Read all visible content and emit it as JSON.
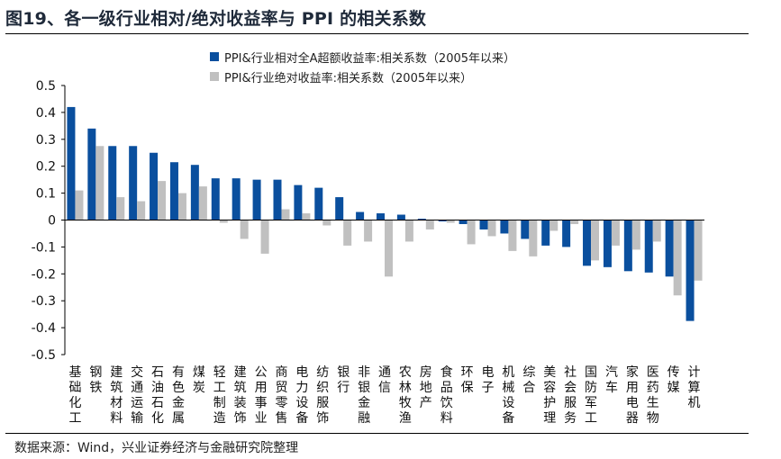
{
  "title": "图19、各一级行业相对/绝对收益率与 PPI 的相关系数",
  "source": "数据来源：Wind，兴业证券经济与金融研究院整理",
  "colors": {
    "series1": "#0a4f9e",
    "series2": "#c0c0c0"
  },
  "chart_data": {
    "type": "bar",
    "title": "各一级行业相对/绝对收益率与 PPI 的相关系数",
    "xlabel": "",
    "ylabel": "",
    "ylim": [
      -0.5,
      0.5
    ],
    "yticks": [
      "0.5",
      "0.4",
      "0.3",
      "0.2",
      "0.1",
      "0",
      "-0.1",
      "-0.2",
      "-0.3",
      "-0.4",
      "-0.5"
    ],
    "ytick_values": [
      0.5,
      0.4,
      0.3,
      0.2,
      0.1,
      0,
      -0.1,
      -0.2,
      -0.3,
      -0.4,
      -0.5
    ],
    "legend_position": "top",
    "grid": false,
    "categories": [
      "基础化工",
      "钢铁",
      "建筑材料",
      "交通运输",
      "石油石化",
      "有色金属",
      "煤炭",
      "轻工制造",
      "建筑装饰",
      "公用事业",
      "商贸零售",
      "电力设备",
      "纺织服饰",
      "银行",
      "非银金融",
      "通信",
      "农林牧渔",
      "房地产",
      "食品饮料",
      "环保",
      "电子",
      "机械设备",
      "综合",
      "美容护理",
      "社会服务",
      "国防军工",
      "汽车",
      "家用电器",
      "医药生物",
      "传媒",
      "计算机"
    ],
    "series": [
      {
        "name": "PPI&行业相对全A超额收益率:相关系数（2005年以来）",
        "values": [
          0.42,
          0.34,
          0.275,
          0.275,
          0.25,
          0.215,
          0.205,
          0.155,
          0.155,
          0.15,
          0.15,
          0.13,
          0.12,
          0.085,
          0.03,
          0.025,
          0.02,
          0.005,
          -0.005,
          -0.015,
          -0.035,
          -0.05,
          -0.07,
          -0.095,
          -0.1,
          -0.17,
          -0.175,
          -0.19,
          -0.195,
          -0.21,
          -0.375
        ]
      },
      {
        "name": "PPI&行业绝对收益率:相关系数（2005年以来）",
        "values": [
          0.11,
          0.275,
          0.085,
          0.07,
          0.145,
          0.1,
          0.125,
          -0.01,
          -0.07,
          -0.125,
          0.04,
          0.025,
          -0.02,
          -0.095,
          -0.08,
          -0.21,
          -0.08,
          -0.035,
          -0.01,
          -0.09,
          -0.06,
          -0.115,
          -0.135,
          -0.04,
          -0.015,
          -0.15,
          -0.095,
          -0.11,
          -0.08,
          -0.28,
          -0.225
        ]
      }
    ]
  }
}
